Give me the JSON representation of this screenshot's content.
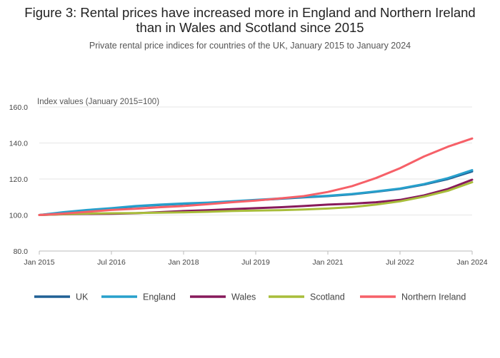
{
  "title": "Figure 3: Rental prices have increased more in England and Northern Ireland than in Wales and Scotland since 2015",
  "subtitle": "Private rental price indices for countries of the UK, January 2015 to January 2024",
  "chart_data": {
    "type": "line",
    "title": "Figure 3: Rental prices have increased more in England and Northern Ireland than in Wales and Scotland since 2015",
    "subtitle": "Private rental price indices for countries of the UK, January 2015 to January 2024",
    "ylabel": "Index values (January 2015=100)",
    "xlabel": "",
    "ylim": [
      80,
      160
    ],
    "yticks": [
      "80.0",
      "100.0",
      "120.0",
      "140.0",
      "160.0"
    ],
    "x_ticks": [
      "Jan 2015",
      "Jul 2016",
      "Jan 2018",
      "Jul 2019",
      "Jan 2021",
      "Jul 2022",
      "Jan 2024"
    ],
    "grid": true,
    "legend_position": "bottom",
    "x": [
      "Jan 2015",
      "Jul 2015",
      "Jan 2016",
      "Jul 2016",
      "Jan 2017",
      "Jul 2017",
      "Jan 2018",
      "Jul 2018",
      "Jan 2019",
      "Jul 2019",
      "Jan 2020",
      "Jul 2020",
      "Jan 2021",
      "Jul 2021",
      "Jan 2022",
      "Jul 2022",
      "Jan 2023",
      "Jul 2023",
      "Jan 2024"
    ],
    "series": [
      {
        "name": "UK",
        "color": "#206095",
        "values": [
          100.0,
          101.3,
          102.5,
          103.6,
          104.8,
          105.6,
          106.2,
          106.7,
          107.4,
          108.2,
          109.0,
          109.8,
          110.5,
          111.5,
          112.9,
          114.5,
          116.9,
          120.0,
          124.2
        ]
      },
      {
        "name": "England",
        "color": "#27A0CC",
        "values": [
          100.0,
          101.6,
          102.8,
          103.8,
          105.0,
          105.8,
          106.4,
          106.9,
          107.6,
          108.4,
          109.2,
          110.0,
          110.7,
          111.7,
          113.1,
          114.7,
          117.2,
          120.5,
          124.9
        ]
      },
      {
        "name": "Wales",
        "color": "#871A5B",
        "values": [
          100.0,
          100.4,
          100.6,
          100.7,
          101.0,
          101.6,
          102.2,
          102.7,
          103.3,
          103.8,
          104.3,
          105.0,
          105.8,
          106.3,
          107.1,
          108.4,
          110.9,
          114.5,
          119.6
        ]
      },
      {
        "name": "Scotland",
        "color": "#A8BD3A",
        "values": [
          100.0,
          100.5,
          100.8,
          101.0,
          101.1,
          101.3,
          101.5,
          101.8,
          102.2,
          102.5,
          102.7,
          103.1,
          103.6,
          104.4,
          105.8,
          107.6,
          110.2,
          113.5,
          118.2
        ]
      },
      {
        "name": "Northern Ireland",
        "color": "#F66068",
        "values": [
          100.0,
          100.8,
          101.8,
          102.8,
          103.5,
          104.3,
          105.0,
          106.0,
          107.1,
          108.0,
          109.2,
          110.5,
          112.8,
          116.0,
          120.5,
          126.0,
          132.5,
          138.0,
          142.5
        ]
      }
    ]
  }
}
